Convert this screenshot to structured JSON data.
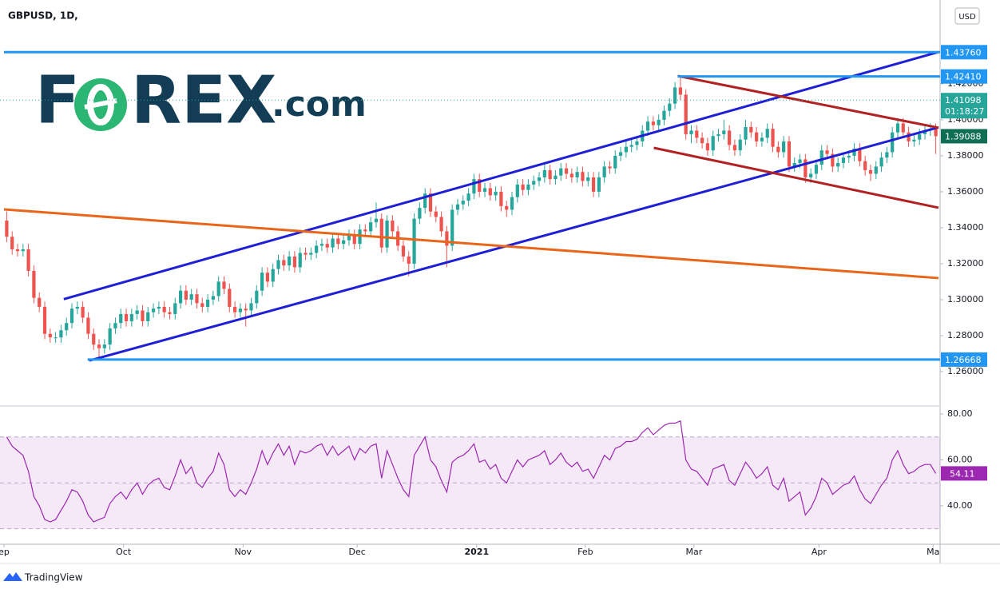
{
  "chart_data": {
    "type": "candlestick",
    "title": "GBPUSD, 1D,",
    "currency": "USD",
    "up_color": "#26a69a",
    "down_color": "#ef5350",
    "xlim": [
      0,
      172
    ],
    "xticks": [
      {
        "value": 0,
        "label": "ep"
      },
      {
        "value": 22,
        "label": "Oct"
      },
      {
        "value": 44,
        "label": "Nov"
      },
      {
        "value": 65,
        "label": "Dec"
      },
      {
        "value": 87,
        "label": "2021"
      },
      {
        "value": 107,
        "label": "Feb"
      },
      {
        "value": 127,
        "label": "Mar"
      },
      {
        "value": 150,
        "label": "Apr"
      },
      {
        "value": 171,
        "label": "Ma"
      }
    ],
    "ylim": [
      1.2422,
      1.4644
    ],
    "yticks": [
      {
        "value": 1.26,
        "label": "1.26000"
      },
      {
        "value": 1.28,
        "label": "1.28000"
      },
      {
        "value": 1.3,
        "label": "1.30000"
      },
      {
        "value": 1.32,
        "label": "1.32000"
      },
      {
        "value": 1.34,
        "label": "1.34000"
      },
      {
        "value": 1.36,
        "label": "1.36000"
      },
      {
        "value": 1.38,
        "label": "1.38000"
      },
      {
        "value": 1.4,
        "label": "1.40000"
      },
      {
        "value": 1.42,
        "label": "1.42000"
      }
    ],
    "candles": [
      [
        1.344,
        1.349,
        1.332,
        1.335
      ],
      [
        1.335,
        1.338,
        1.325,
        1.328
      ],
      [
        1.328,
        1.331,
        1.324,
        1.327
      ],
      [
        1.327,
        1.331,
        1.324,
        1.328
      ],
      [
        1.328,
        1.331,
        1.313,
        1.316
      ],
      [
        1.316,
        1.319,
        1.298,
        1.301
      ],
      [
        1.301,
        1.304,
        1.293,
        1.296
      ],
      [
        1.296,
        1.299,
        1.278,
        1.281
      ],
      [
        1.281,
        1.284,
        1.276,
        1.279
      ],
      [
        1.279,
        1.282,
        1.276,
        1.279
      ],
      [
        1.279,
        1.286,
        1.276,
        1.283
      ],
      [
        1.283,
        1.29,
        1.28,
        1.287
      ],
      [
        1.287,
        1.298,
        1.284,
        1.295
      ],
      [
        1.295,
        1.299,
        1.292,
        1.296
      ],
      [
        1.296,
        1.299,
        1.287,
        1.29
      ],
      [
        1.29,
        1.293,
        1.278,
        1.281
      ],
      [
        1.281,
        1.284,
        1.272,
        1.275
      ],
      [
        1.275,
        1.278,
        1.267,
        1.273
      ],
      [
        1.273,
        1.278,
        1.27,
        1.275
      ],
      [
        1.275,
        1.287,
        1.272,
        1.284
      ],
      [
        1.284,
        1.29,
        1.281,
        1.287
      ],
      [
        1.287,
        1.295,
        1.284,
        1.292
      ],
      [
        1.292,
        1.295,
        1.285,
        1.288
      ],
      [
        1.288,
        1.295,
        1.285,
        1.292
      ],
      [
        1.292,
        1.297,
        1.289,
        1.294
      ],
      [
        1.294,
        1.297,
        1.285,
        1.288
      ],
      [
        1.288,
        1.296,
        1.285,
        1.293
      ],
      [
        1.293,
        1.298,
        1.29,
        1.295
      ],
      [
        1.295,
        1.299,
        1.292,
        1.296
      ],
      [
        1.296,
        1.299,
        1.29,
        1.293
      ],
      [
        1.293,
        1.296,
        1.289,
        1.292
      ],
      [
        1.292,
        1.301,
        1.289,
        1.298
      ],
      [
        1.298,
        1.308,
        1.295,
        1.305
      ],
      [
        1.305,
        1.308,
        1.297,
        1.3
      ],
      [
        1.3,
        1.306,
        1.297,
        1.303
      ],
      [
        1.303,
        1.306,
        1.295,
        1.298
      ],
      [
        1.298,
        1.301,
        1.293,
        1.296
      ],
      [
        1.296,
        1.303,
        1.293,
        1.3
      ],
      [
        1.3,
        1.305,
        1.297,
        1.302
      ],
      [
        1.302,
        1.313,
        1.299,
        1.31
      ],
      [
        1.31,
        1.313,
        1.303,
        1.306
      ],
      [
        1.306,
        1.309,
        1.293,
        1.296
      ],
      [
        1.296,
        1.299,
        1.29,
        1.293
      ],
      [
        1.293,
        1.298,
        1.29,
        1.295
      ],
      [
        1.295,
        1.298,
        1.285,
        1.294
      ],
      [
        1.294,
        1.301,
        1.291,
        1.298
      ],
      [
        1.298,
        1.308,
        1.295,
        1.305
      ],
      [
        1.305,
        1.318,
        1.302,
        1.315
      ],
      [
        1.315,
        1.318,
        1.307,
        1.31
      ],
      [
        1.31,
        1.32,
        1.307,
        1.317
      ],
      [
        1.317,
        1.325,
        1.314,
        1.322
      ],
      [
        1.322,
        1.325,
        1.316,
        1.319
      ],
      [
        1.319,
        1.327,
        1.316,
        1.324
      ],
      [
        1.324,
        1.327,
        1.315,
        1.318
      ],
      [
        1.318,
        1.329,
        1.315,
        1.326
      ],
      [
        1.326,
        1.329,
        1.322,
        1.325
      ],
      [
        1.325,
        1.329,
        1.322,
        1.326
      ],
      [
        1.326,
        1.333,
        1.323,
        1.33
      ],
      [
        1.33,
        1.334,
        1.327,
        1.331
      ],
      [
        1.331,
        1.334,
        1.326,
        1.329
      ],
      [
        1.329,
        1.337,
        1.326,
        1.334
      ],
      [
        1.334,
        1.337,
        1.328,
        1.331
      ],
      [
        1.331,
        1.336,
        1.328,
        1.333
      ],
      [
        1.333,
        1.339,
        1.33,
        1.336
      ],
      [
        1.336,
        1.339,
        1.328,
        1.331
      ],
      [
        1.331,
        1.342,
        1.328,
        1.339
      ],
      [
        1.339,
        1.342,
        1.335,
        1.338
      ],
      [
        1.338,
        1.346,
        1.335,
        1.343
      ],
      [
        1.343,
        1.354,
        1.34,
        1.345
      ],
      [
        1.345,
        1.348,
        1.326,
        1.329
      ],
      [
        1.329,
        1.347,
        1.326,
        1.344
      ],
      [
        1.344,
        1.347,
        1.335,
        1.338
      ],
      [
        1.338,
        1.341,
        1.327,
        1.33
      ],
      [
        1.33,
        1.333,
        1.321,
        1.324
      ],
      [
        1.324,
        1.327,
        1.313,
        1.32
      ],
      [
        1.32,
        1.348,
        1.317,
        1.345
      ],
      [
        1.345,
        1.354,
        1.342,
        1.351
      ],
      [
        1.351,
        1.362,
        1.348,
        1.359
      ],
      [
        1.359,
        1.362,
        1.346,
        1.349
      ],
      [
        1.349,
        1.352,
        1.343,
        1.346
      ],
      [
        1.346,
        1.349,
        1.335,
        1.338
      ],
      [
        1.338,
        1.341,
        1.318,
        1.33
      ],
      [
        1.33,
        1.353,
        1.327,
        1.35
      ],
      [
        1.35,
        1.356,
        1.347,
        1.353
      ],
      [
        1.353,
        1.358,
        1.35,
        1.355
      ],
      [
        1.355,
        1.362,
        1.352,
        1.359
      ],
      [
        1.359,
        1.37,
        1.356,
        1.367
      ],
      [
        1.367,
        1.37,
        1.357,
        1.36
      ],
      [
        1.36,
        1.365,
        1.357,
        1.362
      ],
      [
        1.362,
        1.365,
        1.355,
        1.358
      ],
      [
        1.358,
        1.363,
        1.355,
        1.36
      ],
      [
        1.36,
        1.363,
        1.349,
        1.352
      ],
      [
        1.352,
        1.355,
        1.346,
        1.35
      ],
      [
        1.35,
        1.36,
        1.347,
        1.357
      ],
      [
        1.357,
        1.367,
        1.354,
        1.364
      ],
      [
        1.364,
        1.367,
        1.358,
        1.361
      ],
      [
        1.361,
        1.367,
        1.358,
        1.364
      ],
      [
        1.364,
        1.369,
        1.361,
        1.366
      ],
      [
        1.366,
        1.371,
        1.363,
        1.368
      ],
      [
        1.368,
        1.375,
        1.365,
        1.372
      ],
      [
        1.372,
        1.375,
        1.364,
        1.367
      ],
      [
        1.367,
        1.372,
        1.364,
        1.369
      ],
      [
        1.369,
        1.376,
        1.366,
        1.373
      ],
      [
        1.373,
        1.376,
        1.367,
        1.37
      ],
      [
        1.37,
        1.373,
        1.365,
        1.368
      ],
      [
        1.368,
        1.374,
        1.365,
        1.371
      ],
      [
        1.371,
        1.374,
        1.363,
        1.366
      ],
      [
        1.366,
        1.371,
        1.363,
        1.368
      ],
      [
        1.368,
        1.371,
        1.357,
        1.36
      ],
      [
        1.36,
        1.371,
        1.357,
        1.368
      ],
      [
        1.368,
        1.377,
        1.365,
        1.374
      ],
      [
        1.374,
        1.377,
        1.37,
        1.373
      ],
      [
        1.373,
        1.383,
        1.37,
        1.38
      ],
      [
        1.38,
        1.385,
        1.377,
        1.382
      ],
      [
        1.382,
        1.388,
        1.379,
        1.385
      ],
      [
        1.385,
        1.389,
        1.382,
        1.386
      ],
      [
        1.386,
        1.391,
        1.383,
        1.388
      ],
      [
        1.388,
        1.397,
        1.385,
        1.394
      ],
      [
        1.394,
        1.402,
        1.391,
        1.399
      ],
      [
        1.399,
        1.402,
        1.394,
        1.397
      ],
      [
        1.397,
        1.403,
        1.394,
        1.4
      ],
      [
        1.4,
        1.408,
        1.397,
        1.405
      ],
      [
        1.405,
        1.412,
        1.402,
        1.409
      ],
      [
        1.409,
        1.421,
        1.406,
        1.418
      ],
      [
        1.418,
        1.4241,
        1.411,
        1.414
      ],
      [
        1.414,
        1.417,
        1.389,
        1.392
      ],
      [
        1.392,
        1.397,
        1.387,
        1.394
      ],
      [
        1.394,
        1.397,
        1.387,
        1.39
      ],
      [
        1.39,
        1.393,
        1.384,
        1.387
      ],
      [
        1.387,
        1.39,
        1.38,
        1.383
      ],
      [
        1.383,
        1.394,
        1.38,
        1.391
      ],
      [
        1.391,
        1.395,
        1.388,
        1.392
      ],
      [
        1.392,
        1.4,
        1.389,
        1.394
      ],
      [
        1.394,
        1.397,
        1.383,
        1.386
      ],
      [
        1.386,
        1.389,
        1.38,
        1.383
      ],
      [
        1.383,
        1.392,
        1.38,
        1.389
      ],
      [
        1.389,
        1.4,
        1.386,
        1.396
      ],
      [
        1.396,
        1.399,
        1.39,
        1.393
      ],
      [
        1.393,
        1.396,
        1.385,
        1.388
      ],
      [
        1.388,
        1.393,
        1.385,
        1.39
      ],
      [
        1.39,
        1.398,
        1.387,
        1.395
      ],
      [
        1.395,
        1.398,
        1.382,
        1.385
      ],
      [
        1.385,
        1.388,
        1.379,
        1.382
      ],
      [
        1.382,
        1.391,
        1.379,
        1.388
      ],
      [
        1.388,
        1.391,
        1.371,
        1.374
      ],
      [
        1.374,
        1.379,
        1.371,
        1.376
      ],
      [
        1.376,
        1.381,
        1.373,
        1.378
      ],
      [
        1.378,
        1.381,
        1.365,
        1.368
      ],
      [
        1.368,
        1.373,
        1.365,
        1.37
      ],
      [
        1.37,
        1.378,
        1.367,
        1.375
      ],
      [
        1.375,
        1.386,
        1.372,
        1.383
      ],
      [
        1.383,
        1.386,
        1.378,
        1.381
      ],
      [
        1.381,
        1.384,
        1.371,
        1.374
      ],
      [
        1.374,
        1.379,
        1.371,
        1.376
      ],
      [
        1.376,
        1.382,
        1.373,
        1.379
      ],
      [
        1.379,
        1.383,
        1.376,
        1.38
      ],
      [
        1.38,
        1.387,
        1.377,
        1.384
      ],
      [
        1.384,
        1.387,
        1.374,
        1.377
      ],
      [
        1.377,
        1.38,
        1.369,
        1.372
      ],
      [
        1.372,
        1.375,
        1.366,
        1.37
      ],
      [
        1.37,
        1.377,
        1.367,
        1.374
      ],
      [
        1.374,
        1.382,
        1.371,
        1.379
      ],
      [
        1.379,
        1.385,
        1.376,
        1.382
      ],
      [
        1.382,
        1.396,
        1.379,
        1.393
      ],
      [
        1.393,
        1.401,
        1.39,
        1.398
      ],
      [
        1.398,
        1.401,
        1.39,
        1.393
      ],
      [
        1.393,
        1.396,
        1.385,
        1.388
      ],
      [
        1.388,
        1.392,
        1.385,
        1.389
      ],
      [
        1.389,
        1.395,
        1.386,
        1.392
      ],
      [
        1.392,
        1.397,
        1.389,
        1.394
      ],
      [
        1.394,
        1.398,
        1.391,
        1.395
      ],
      [
        1.395,
        1.398,
        1.381,
        1.39088
      ]
    ],
    "levels": [
      {
        "value": 1.4376,
        "label": "1.43760",
        "start": 0
      },
      {
        "value": 1.4241,
        "label": "1.42410",
        "start": 124
      },
      {
        "value": 1.26668,
        "start": 15.4
      }
    ],
    "level_color": "#2196f3",
    "price_line": 1.41098,
    "countdown": "01:18:27",
    "last_price": 1.39088,
    "trendlines": [
      {
        "color": "#1f1fd6",
        "points": [
          [
            11,
            1.3003
          ],
          [
            172,
            1.4377
          ]
        ]
      },
      {
        "color": "#1f1fd6",
        "points": [
          [
            15.7,
            1.2661
          ],
          [
            172,
            1.3958
          ]
        ]
      },
      {
        "color": "#b22222",
        "points": [
          [
            124,
            1.4244
          ],
          [
            172,
            1.3956
          ]
        ]
      },
      {
        "color": "#b22222",
        "points": [
          [
            119.6,
            1.3844
          ],
          [
            172,
            1.3511
          ]
        ]
      },
      {
        "color": "#e8651a",
        "points": [
          [
            0,
            1.3502
          ],
          [
            172,
            1.312
          ]
        ]
      }
    ],
    "rsi": {
      "color": "#9c27b0",
      "ylim": [
        23.6,
        82.8
      ],
      "yticks": [
        {
          "value": 40,
          "label": "40.00"
        },
        {
          "value": 60,
          "label": "60.00"
        },
        {
          "value": 80,
          "label": "80.00"
        }
      ],
      "band": [
        30,
        70
      ],
      "mid": 50,
      "values": [
        70,
        66,
        64,
        62,
        55,
        44,
        40,
        34,
        33,
        34,
        38,
        42,
        47,
        46,
        42,
        36,
        33,
        34,
        35,
        41,
        44,
        46,
        43,
        47,
        50,
        45,
        49,
        51,
        52,
        48,
        47,
        53,
        60,
        54,
        57,
        50,
        48,
        52,
        55,
        63,
        58,
        47,
        44,
        47,
        45,
        50,
        56,
        64,
        58,
        63,
        67,
        62,
        66,
        58,
        64,
        63,
        64,
        66,
        67,
        62,
        66,
        62,
        64,
        66,
        60,
        65,
        63,
        66,
        67,
        52,
        64,
        58,
        52,
        47,
        44,
        62,
        66,
        70,
        60,
        57,
        51,
        46,
        59,
        61,
        62,
        64,
        67,
        59,
        60,
        56,
        58,
        52,
        50,
        55,
        60,
        57,
        60,
        61,
        62,
        64,
        58,
        60,
        63,
        59,
        57,
        59,
        55,
        56,
        52,
        57,
        62,
        60,
        65,
        66,
        68,
        68,
        69,
        72,
        74,
        71,
        73,
        75,
        76,
        76,
        77,
        60,
        56,
        55,
        52,
        49,
        56,
        57,
        58,
        51,
        49,
        54,
        59,
        56,
        52,
        54,
        57,
        49,
        47,
        52,
        42,
        44,
        46,
        36,
        39,
        44,
        52,
        50,
        45,
        47,
        49,
        50,
        53,
        47,
        43,
        41,
        45,
        49,
        52,
        60,
        64,
        58,
        54,
        55,
        57,
        58,
        58,
        54.11
      ]
    }
  },
  "logo": [
    "F",
    "REX",
    ".com"
  ],
  "footer": "TradingView"
}
